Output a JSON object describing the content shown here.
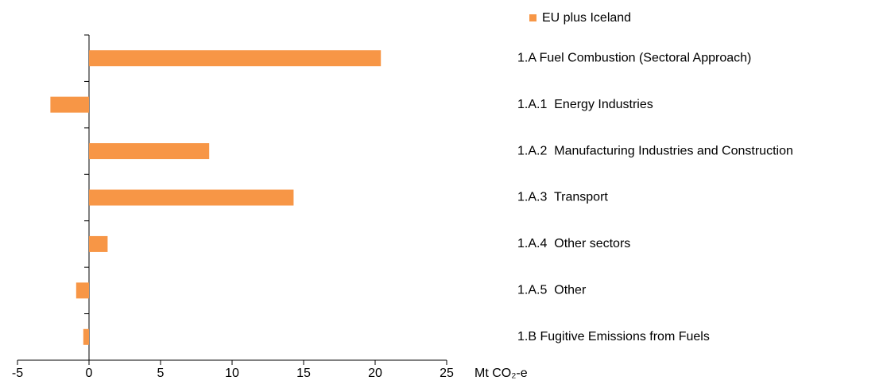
{
  "chart_data": {
    "type": "barh",
    "categories": [
      "1.A Fuel Combustion (Sectoral Approach)",
      "1.A.1  Energy Industries",
      "1.A.2  Manufacturing Industries and Construction",
      "1.A.3  Transport",
      "1.A.4  Other sectors",
      "1.A.5  Other",
      "1.B Fugitive Emissions from Fuels"
    ],
    "series": [
      {
        "name": "EU plus Iceland",
        "color": "#f79646",
        "values": [
          20.4,
          -2.7,
          8.4,
          14.3,
          1.3,
          -0.9,
          -0.4
        ]
      }
    ],
    "xlabel": "Mt CO₂-e",
    "xlim": [
      -5,
      25
    ],
    "xticks": [
      -5,
      0,
      5,
      10,
      15,
      20,
      25
    ]
  }
}
